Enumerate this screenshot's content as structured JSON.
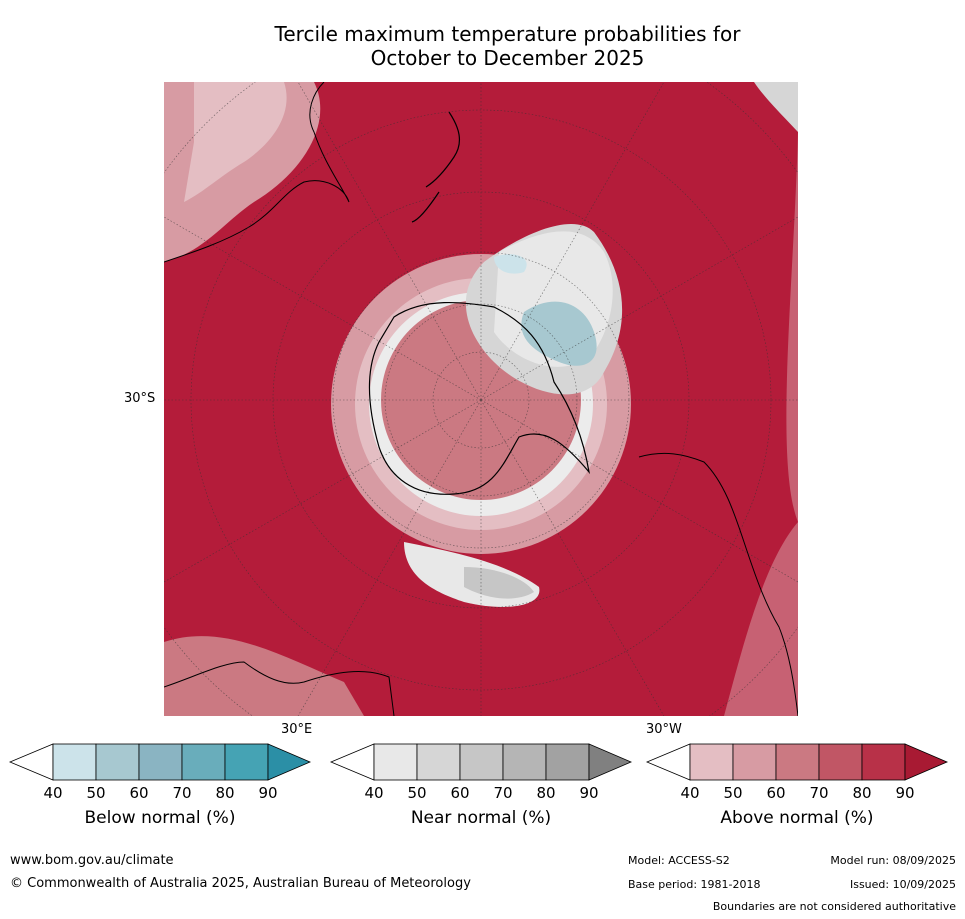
{
  "title_line1": "Tercile maximum temperature probabilities for",
  "title_line2": "October to December 2025",
  "map": {
    "projection": "south-polar-stereographic",
    "lat_label": "30°S",
    "lon_labels": [
      "30°E",
      "30°W"
    ],
    "dominant_color": "#b41c3a"
  },
  "colorbars": [
    {
      "name": "below",
      "title": "Below normal (%)",
      "ticks": [
        "40",
        "50",
        "60",
        "70",
        "80",
        "90"
      ],
      "colors": [
        "#ffffff",
        "#cce3ea",
        "#a7c8d0",
        "#8ab4c2",
        "#69adbb",
        "#45a3b4",
        "#2b8fa6"
      ]
    },
    {
      "name": "near",
      "title": "Near normal (%)",
      "ticks": [
        "40",
        "50",
        "60",
        "70",
        "80",
        "90"
      ],
      "colors": [
        "#ffffff",
        "#e8e8e8",
        "#d6d6d6",
        "#c6c6c6",
        "#b5b5b5",
        "#a2a2a2",
        "#808080"
      ]
    },
    {
      "name": "above",
      "title": "Above normal (%)",
      "ticks": [
        "40",
        "50",
        "60",
        "70",
        "80",
        "90"
      ],
      "colors": [
        "#ffffff",
        "#e4bec3",
        "#d79ba3",
        "#cb7982",
        "#c15665",
        "#b83148",
        "#a81a33"
      ]
    }
  ],
  "footer": {
    "website": "www.bom.gov.au/climate",
    "copyright": "© Commonwealth of Australia 2025, Australian Bureau of Meteorology",
    "model": "Model: ACCESS-S2",
    "base_period": "Base period: 1981-2018",
    "model_run": "Model run: 08/09/2025",
    "issued": "Issued: 10/09/2025",
    "disclaimer": "Boundaries are not considered authoritative"
  }
}
